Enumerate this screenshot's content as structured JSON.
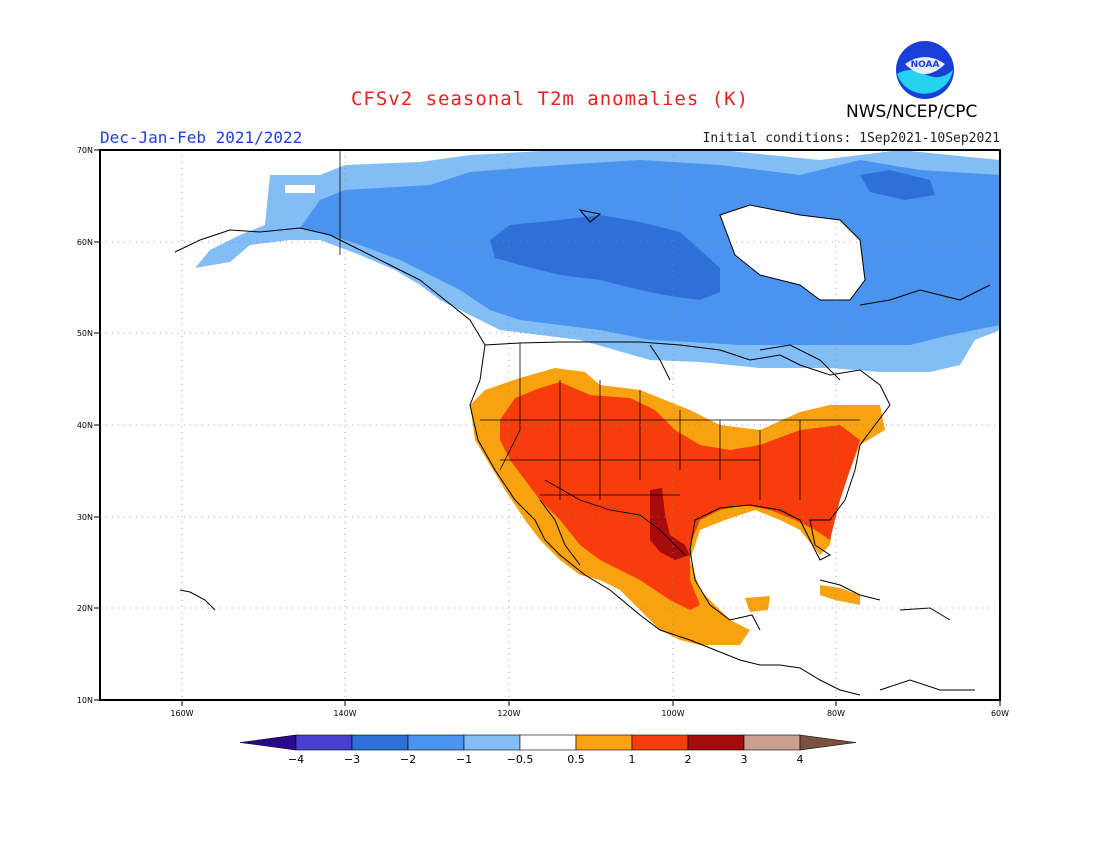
{
  "header": {
    "title": "CFSv2 seasonal T2m anomalies (K)",
    "agency": "NWS/NCEP/CPC",
    "season": "Dec-Jan-Feb 2021/2022",
    "initial_conditions": "Initial conditions: 1Sep2021-10Sep2021",
    "logo_text": "NOAA"
  },
  "axes": {
    "lat_labels": [
      "70N",
      "60N",
      "50N",
      "40N",
      "30N",
      "20N",
      "10N"
    ],
    "lon_labels": [
      "160W",
      "140W",
      "120W",
      "100W",
      "80W",
      "60W"
    ]
  },
  "colorbar": {
    "labels": [
      "−4",
      "−3",
      "−2",
      "−1",
      "−0.5",
      "0.5",
      "1",
      "2",
      "3",
      "4"
    ],
    "colors": [
      "#2a0a8c",
      "#4a3fd0",
      "#2f6fd8",
      "#4a93ee",
      "#82bdf6",
      "#ffffff",
      "#f9a20f",
      "#f83d0c",
      "#a70b0b",
      "#c9a08e",
      "#7a5040"
    ]
  }
}
